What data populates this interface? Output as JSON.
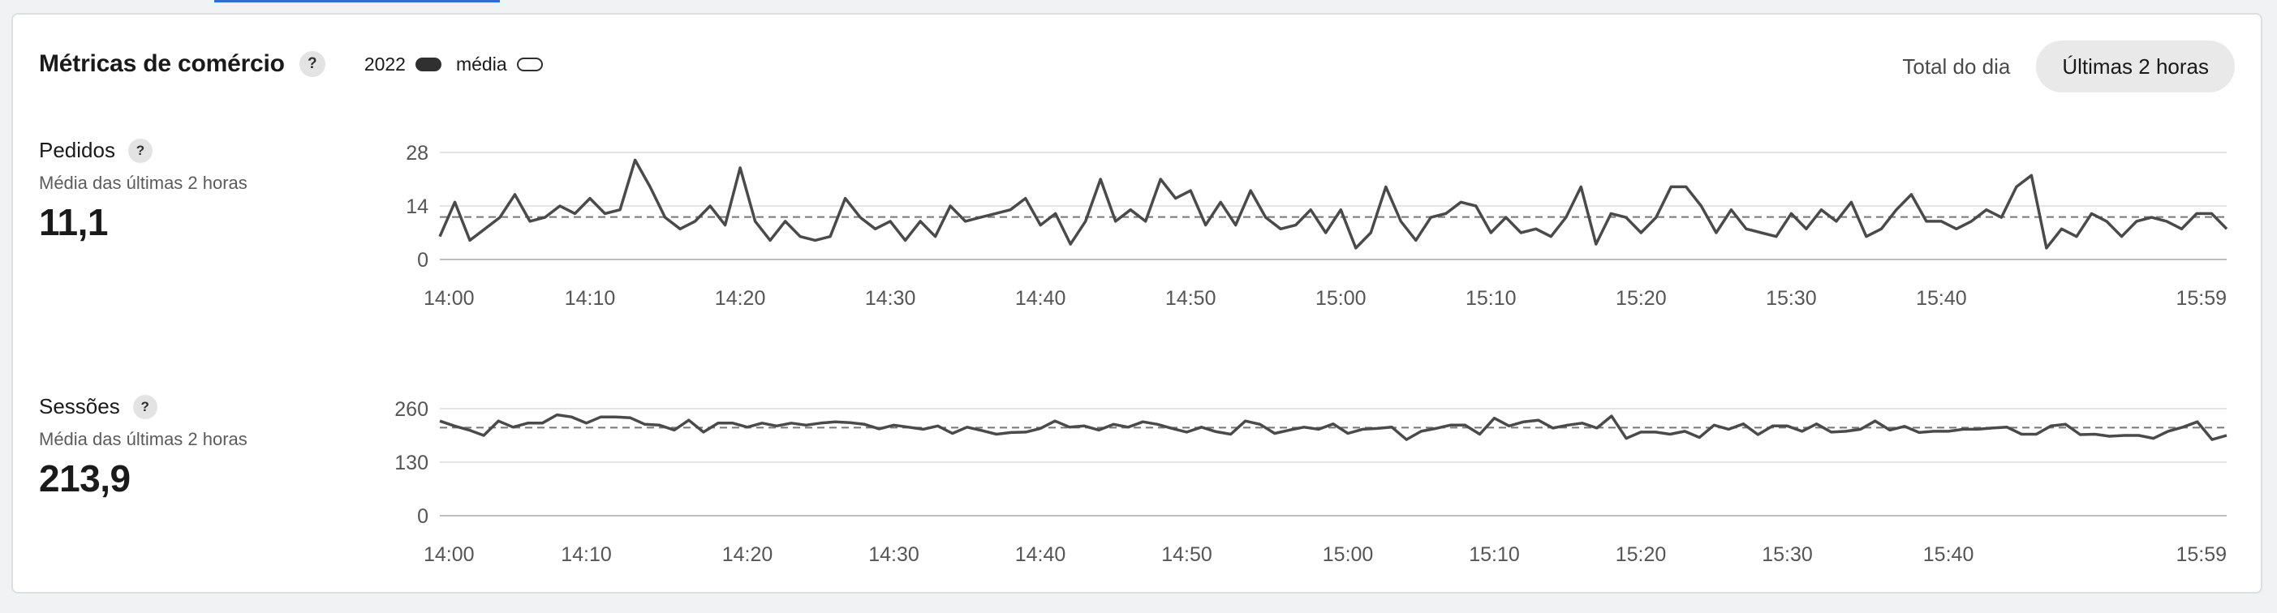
{
  "header": {
    "title": "Métricas de comércio",
    "help_icon": "?",
    "legend": [
      {
        "label": "2022",
        "style": "solid"
      },
      {
        "label": "média",
        "style": "outline"
      }
    ]
  },
  "toggle": {
    "options": [
      {
        "label": "Total do dia",
        "active": false
      },
      {
        "label": "Últimas 2 horas",
        "active": true
      }
    ]
  },
  "metrics": {
    "orders": {
      "name": "Pedidos",
      "help": "?",
      "subtitle": "Média das últimas 2 horas",
      "value": "11,1"
    },
    "sessions": {
      "name": "Sessões",
      "help": "?",
      "subtitle": "Média das últimas 2 horas",
      "value": "213,9"
    }
  },
  "colors": {
    "line": "#4a4a4a",
    "avg_line": "#777777",
    "grid": "#e4e4e4",
    "axis": "#bdbdbd"
  },
  "chart_data": [
    {
      "type": "line",
      "id": "orders",
      "y_ticks": [
        "0",
        "14",
        "28"
      ],
      "ylim": [
        0,
        28
      ],
      "x_ticks": [
        "14:00",
        "14:10",
        "14:20",
        "14:30",
        "14:40",
        "14:50",
        "15:00",
        "15:10",
        "15:20",
        "15:30",
        "15:40",
        "15:59"
      ],
      "average": 11.1,
      "values": [
        6,
        15,
        5,
        8,
        11,
        17,
        10,
        11,
        14,
        12,
        16,
        12,
        13,
        26,
        19,
        11,
        8,
        10,
        14,
        9,
        24,
        10,
        5,
        10,
        6,
        5,
        6,
        16,
        11,
        8,
        10,
        5,
        10,
        6,
        14,
        10,
        11,
        12,
        13,
        16,
        9,
        12,
        4,
        10,
        21,
        10,
        13,
        10,
        21,
        16,
        18,
        9,
        15,
        9,
        18,
        11,
        8,
        9,
        13,
        7,
        13,
        3,
        7,
        19,
        10,
        5,
        11,
        12,
        15,
        14,
        7,
        11,
        7,
        8,
        6,
        11,
        19,
        4,
        12,
        11,
        7,
        11,
        19,
        19,
        14,
        7,
        13,
        8,
        7,
        6,
        12,
        8,
        13,
        10,
        15,
        6,
        8,
        13,
        17,
        10,
        10,
        8,
        10,
        13,
        11,
        19,
        22,
        3,
        8,
        6,
        12,
        10,
        6,
        10,
        11,
        10,
        8,
        12,
        12,
        8
      ]
    },
    {
      "type": "line",
      "id": "sessions",
      "y_ticks": [
        "0",
        "130",
        "260"
      ],
      "ylim": [
        0,
        260
      ],
      "x_ticks": [
        "14:00",
        "14:10",
        "14:20",
        "14:30",
        "14:40",
        "14:50",
        "15:00",
        "15:10",
        "15:20",
        "15:30",
        "15:40",
        "15:59"
      ],
      "average": 213.9,
      "values": [
        230,
        218,
        208,
        195,
        230,
        215,
        225,
        225,
        245,
        240,
        225,
        240,
        240,
        238,
        222,
        220,
        208,
        232,
        203,
        225,
        225,
        215,
        225,
        218,
        225,
        220,
        225,
        228,
        226,
        222,
        211,
        220,
        215,
        210,
        218,
        200,
        215,
        207,
        198,
        202,
        203,
        212,
        230,
        215,
        218,
        208,
        222,
        215,
        228,
        222,
        212,
        203,
        215,
        204,
        198,
        230,
        222,
        200,
        208,
        215,
        210,
        223,
        200,
        210,
        212,
        215,
        185,
        205,
        212,
        220,
        220,
        198,
        237,
        218,
        228,
        232,
        213,
        220,
        225,
        213,
        242,
        188,
        203,
        203,
        198,
        205,
        190,
        220,
        210,
        223,
        197,
        218,
        218,
        205,
        223,
        203,
        205,
        210,
        230,
        208,
        217,
        202,
        205,
        205,
        210,
        210,
        213,
        215,
        198,
        198,
        218,
        222,
        197,
        198,
        193,
        195,
        195,
        188,
        205,
        215,
        228,
        185,
        195
      ]
    }
  ]
}
